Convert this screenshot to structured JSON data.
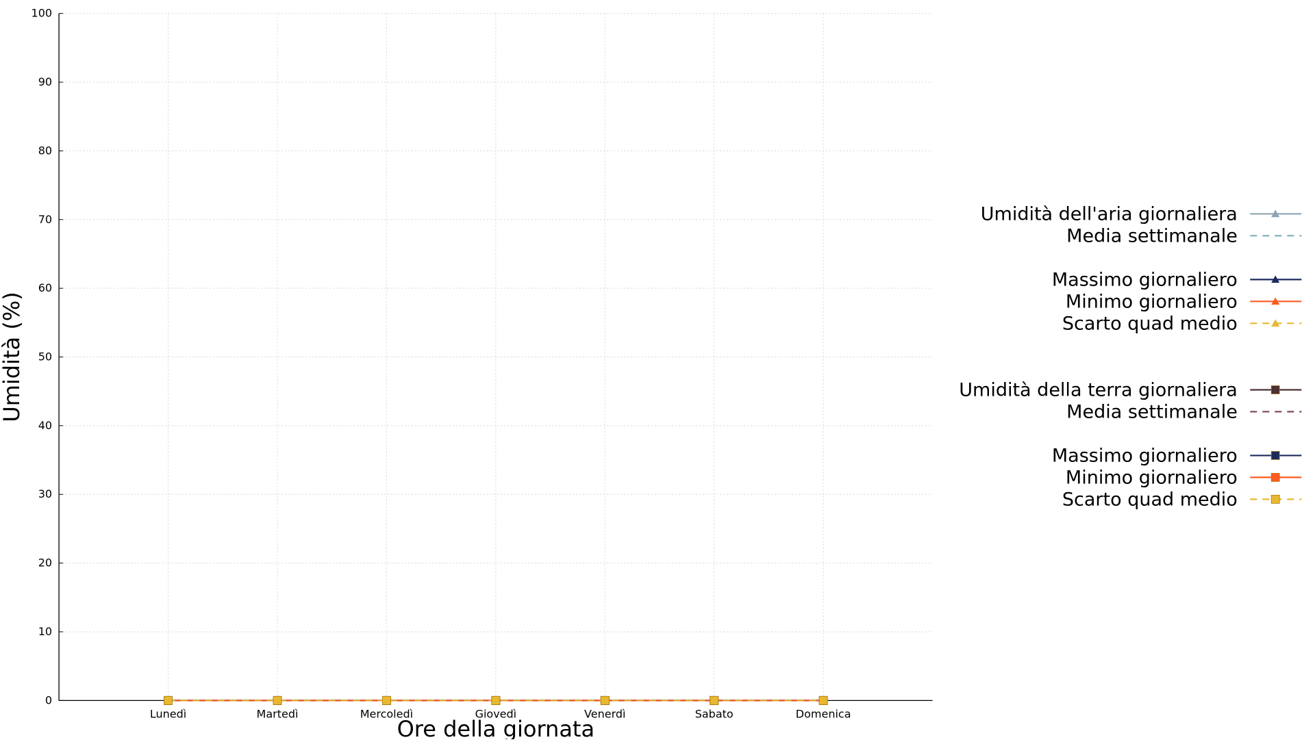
{
  "chart_data": {
    "type": "line",
    "title": "",
    "xlabel": "Ore della giornata",
    "ylabel": "Umidità (%)",
    "categories": [
      "Lunedì",
      "Martedì",
      "Mercoledì",
      "Giovedì",
      "Venerdì",
      "Sabato",
      "Domenica"
    ],
    "ylim": [
      0,
      100
    ],
    "yticks": [
      0,
      10,
      20,
      30,
      40,
      50,
      60,
      70,
      80,
      90,
      100
    ],
    "grid": true,
    "legend_position": "right",
    "series": [
      {
        "name": "Umidità dell'aria giornaliera",
        "values": [
          0,
          0,
          0,
          0,
          0,
          0,
          0
        ],
        "color": "#8fa3b3",
        "dash": "solid",
        "marker": "triangle"
      },
      {
        "name": "Media settimanale",
        "values": [
          0,
          0,
          0,
          0,
          0,
          0,
          0
        ],
        "color": "#7fb3b8",
        "dash": "dashed",
        "marker": "none"
      },
      {
        "name": "Massimo giornaliero",
        "values": [
          0,
          0,
          0,
          0,
          0,
          0,
          0
        ],
        "color": "#1a2a5c",
        "dash": "solid",
        "marker": "triangle"
      },
      {
        "name": "Minimo giornaliero",
        "values": [
          0,
          0,
          0,
          0,
          0,
          0,
          0
        ],
        "color": "#ff5a1f",
        "dash": "solid",
        "marker": "triangle"
      },
      {
        "name": "Scarto quad medio",
        "values": [
          0,
          0,
          0,
          0,
          0,
          0,
          0
        ],
        "color": "#e8b830",
        "dash": "dashed",
        "marker": "triangle"
      },
      {
        "name": "Umidità della terra giornaliera",
        "values": [
          0,
          0,
          0,
          0,
          0,
          0,
          0
        ],
        "color": "#4a3035",
        "dash": "solid",
        "marker": "square"
      },
      {
        "name": "Media settimanale",
        "values": [
          0,
          0,
          0,
          0,
          0,
          0,
          0
        ],
        "color": "#7a3f55",
        "dash": "dashed",
        "marker": "none"
      },
      {
        "name": "Massimo giornaliero",
        "values": [
          0,
          0,
          0,
          0,
          0,
          0,
          0
        ],
        "color": "#1a2a5c",
        "dash": "solid",
        "marker": "square"
      },
      {
        "name": "Minimo giornaliero",
        "values": [
          0,
          0,
          0,
          0,
          0,
          0,
          0
        ],
        "color": "#ff5a1f",
        "dash": "solid",
        "marker": "square"
      },
      {
        "name": "Scarto quad medio",
        "values": [
          0,
          0,
          0,
          0,
          0,
          0,
          0
        ],
        "color": "#e8b830",
        "dash": "dashed",
        "marker": "square"
      }
    ]
  }
}
